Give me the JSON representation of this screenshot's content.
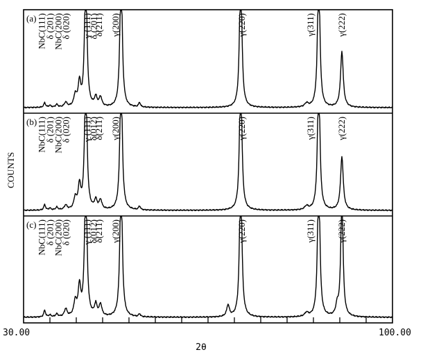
{
  "chart_data": {
    "type": "line",
    "xlabel": "2θ",
    "ylabel": "COUNTS",
    "xlim": [
      30,
      100
    ],
    "x_tick_labels": [
      "30.00",
      "100.00"
    ],
    "minor_ticks_at": [
      35,
      40,
      45,
      50,
      55,
      60,
      65,
      70,
      75,
      80,
      85,
      90,
      95
    ],
    "grid": false,
    "panels": [
      {
        "label": "(a)",
        "series": [
          {
            "peaks": [
              {
                "x": 34.0,
                "height": 0.05,
                "width": 0.2
              },
              {
                "x": 35.0,
                "height": 0.02,
                "width": 0.25
              },
              {
                "x": 36.3,
                "height": 0.03,
                "width": 0.25
              },
              {
                "x": 38.0,
                "height": 0.05,
                "width": 0.3
              },
              {
                "x": 39.8,
                "height": 0.12,
                "width": 0.3
              },
              {
                "x": 40.6,
                "height": 0.25,
                "width": 0.3
              },
              {
                "x": 41.8,
                "height": 1.6,
                "width": 0.25
              },
              {
                "x": 43.7,
                "height": 0.1,
                "width": 0.3
              },
              {
                "x": 44.6,
                "height": 0.1,
                "width": 0.3
              },
              {
                "x": 48.5,
                "height": 1.6,
                "width": 0.25
              },
              {
                "x": 52.0,
                "height": 0.05,
                "width": 0.2
              },
              {
                "x": 71.2,
                "height": 1.6,
                "width": 0.25
              },
              {
                "x": 83.7,
                "height": 0.04,
                "width": 0.4
              },
              {
                "x": 86.0,
                "height": 1.6,
                "width": 0.25
              },
              {
                "x": 90.4,
                "height": 0.6,
                "width": 0.3
              }
            ]
          }
        ],
        "peak_labels": [
          {
            "text": "NbC(111)",
            "x": 34.0
          },
          {
            "text": "δ (201)",
            "x": 35.6
          },
          {
            "text": "NbC(200)",
            "x": 37.2
          },
          {
            "text": "δ (020)",
            "x": 38.6
          },
          {
            "text": "γ (111)",
            "x": 42.6
          },
          {
            "text": "δ (201)",
            "x": 43.9
          },
          {
            "text": "δ(211)",
            "x": 44.9
          },
          {
            "text": "γ(200)",
            "x": 48.0
          },
          {
            "text": "γ(220)",
            "x": 72.0
          },
          {
            "text": "γ(311)",
            "x": 85.0
          },
          {
            "text": "γ(222)",
            "x": 90.9
          }
        ]
      },
      {
        "label": "(b)",
        "series": [
          {
            "peaks": [
              {
                "x": 34.0,
                "height": 0.06,
                "width": 0.2
              },
              {
                "x": 35.0,
                "height": 0.02,
                "width": 0.25
              },
              {
                "x": 36.3,
                "height": 0.03,
                "width": 0.25
              },
              {
                "x": 38.0,
                "height": 0.05,
                "width": 0.3
              },
              {
                "x": 39.8,
                "height": 0.12,
                "width": 0.3
              },
              {
                "x": 40.6,
                "height": 0.25,
                "width": 0.3
              },
              {
                "x": 41.8,
                "height": 1.6,
                "width": 0.25
              },
              {
                "x": 43.7,
                "height": 0.1,
                "width": 0.3
              },
              {
                "x": 44.6,
                "height": 0.1,
                "width": 0.3
              },
              {
                "x": 48.5,
                "height": 1.6,
                "width": 0.25
              },
              {
                "x": 52.0,
                "height": 0.04,
                "width": 0.2
              },
              {
                "x": 71.2,
                "height": 1.6,
                "width": 0.25
              },
              {
                "x": 83.7,
                "height": 0.04,
                "width": 0.4
              },
              {
                "x": 86.0,
                "height": 1.6,
                "width": 0.25
              },
              {
                "x": 90.4,
                "height": 0.58,
                "width": 0.3
              }
            ]
          }
        ],
        "peak_labels": [
          {
            "text": "NbC(111)",
            "x": 34.0
          },
          {
            "text": "δ (201)",
            "x": 35.6
          },
          {
            "text": "NbC(200)",
            "x": 37.2
          },
          {
            "text": "δ (020)",
            "x": 38.6
          },
          {
            "text": "γ (111)",
            "x": 42.6
          },
          {
            "text": "δ(012)",
            "x": 43.8
          },
          {
            "text": "δ(211)",
            "x": 44.9
          },
          {
            "text": "γ(200)",
            "x": 48.0
          },
          {
            "text": "γ(220)",
            "x": 72.0
          },
          {
            "text": "γ(311)",
            "x": 85.0
          },
          {
            "text": "γ(222)",
            "x": 90.9
          }
        ]
      },
      {
        "label": "(c)",
        "series": [
          {
            "peaks": [
              {
                "x": 34.0,
                "height": 0.07,
                "width": 0.2
              },
              {
                "x": 35.0,
                "height": 0.02,
                "width": 0.25
              },
              {
                "x": 36.3,
                "height": 0.03,
                "width": 0.25
              },
              {
                "x": 38.0,
                "height": 0.08,
                "width": 0.3
              },
              {
                "x": 39.8,
                "height": 0.15,
                "width": 0.3
              },
              {
                "x": 40.6,
                "height": 0.3,
                "width": 0.3
              },
              {
                "x": 41.8,
                "height": 1.6,
                "width": 0.25
              },
              {
                "x": 43.7,
                "height": 0.12,
                "width": 0.3
              },
              {
                "x": 44.6,
                "height": 0.12,
                "width": 0.3
              },
              {
                "x": 48.5,
                "height": 1.6,
                "width": 0.25
              },
              {
                "x": 52.0,
                "height": 0.03,
                "width": 0.2
              },
              {
                "x": 68.8,
                "height": 0.12,
                "width": 0.3
              },
              {
                "x": 71.2,
                "height": 1.6,
                "width": 0.25
              },
              {
                "x": 83.7,
                "height": 0.04,
                "width": 0.4
              },
              {
                "x": 86.0,
                "height": 1.6,
                "width": 0.25
              },
              {
                "x": 89.5,
                "height": 0.1,
                "width": 0.3
              },
              {
                "x": 90.4,
                "height": 1.3,
                "width": 0.25
              }
            ]
          }
        ],
        "peak_labels": [
          {
            "text": "NbC(111)",
            "x": 34.0
          },
          {
            "text": "δ (201)",
            "x": 35.6
          },
          {
            "text": "NbC(200)",
            "x": 37.2
          },
          {
            "text": "δ (020)",
            "x": 38.6
          },
          {
            "text": "γ (111)",
            "x": 42.6
          },
          {
            "text": "δ(012)",
            "x": 43.8
          },
          {
            "text": "δ(211)",
            "x": 44.9
          },
          {
            "text": "γ(200)",
            "x": 48.0
          },
          {
            "text": "γ(220)",
            "x": 72.0
          },
          {
            "text": "γ(311)",
            "x": 85.0
          },
          {
            "text": "γ(222)",
            "x": 90.9
          }
        ]
      }
    ]
  }
}
